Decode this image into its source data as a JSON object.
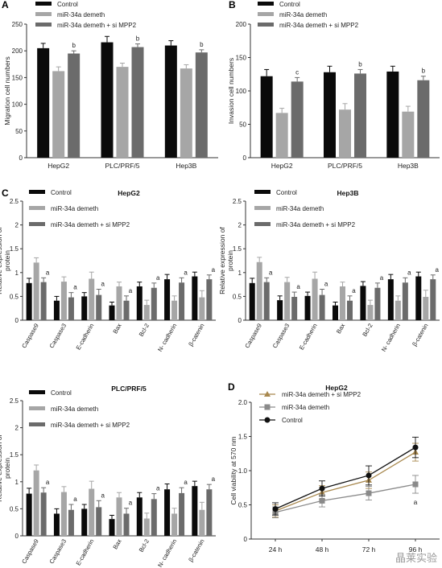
{
  "colors": {
    "control": "#0a0a0a",
    "demeth": "#a6a6a6",
    "demeth_si": "#6b6b6b",
    "line_si": "#a8884e",
    "line_demeth": "#8a8a8a",
    "line_control": "#111111"
  },
  "watermark": "晶莱实验",
  "chart_data": [
    {
      "panel": "A",
      "type": "bar",
      "ylabel": "Migration cell numbers",
      "ylim": [
        0,
        250
      ],
      "yticks": [
        0,
        50,
        100,
        150,
        200,
        250
      ],
      "categories": [
        "HepG2",
        "PLC/PRF/5",
        "Hep3B"
      ],
      "series": [
        {
          "name": "Control",
          "color": "control",
          "values": [
            205,
            216,
            210
          ],
          "err": [
            9,
            11,
            9
          ]
        },
        {
          "name": "miR-34a demeth",
          "color": "demeth",
          "values": [
            162,
            170,
            167
          ],
          "err": [
            8,
            7,
            7
          ]
        },
        {
          "name": "miR-34a demeth + si MPP2",
          "color": "demeth_si",
          "values": [
            195,
            207,
            197
          ],
          "err": [
            5,
            6,
            5
          ]
        }
      ],
      "annotations": [
        {
          "category": 0,
          "series": 2,
          "text": "b"
        },
        {
          "category": 1,
          "series": 2,
          "text": "b"
        },
        {
          "category": 2,
          "series": 2,
          "text": "b"
        }
      ],
      "legend_position": "top-left"
    },
    {
      "panel": "B",
      "type": "bar",
      "ylabel": "Invasion cell numbers",
      "ylim": [
        0,
        200
      ],
      "yticks": [
        0,
        50,
        100,
        150,
        200
      ],
      "categories": [
        "HepG2",
        "PLC/PRF/5",
        "Hep3B"
      ],
      "series": [
        {
          "name": "Control",
          "color": "control",
          "values": [
            122,
            128,
            129
          ],
          "err": [
            10,
            9,
            8
          ]
        },
        {
          "name": "miR-34a demeth",
          "color": "demeth",
          "values": [
            67,
            72,
            69
          ],
          "err": [
            7,
            9,
            8
          ]
        },
        {
          "name": "miR-34a demeth + si MPP2",
          "color": "demeth_si",
          "values": [
            114,
            126,
            116
          ],
          "err": [
            6,
            6,
            6
          ]
        }
      ],
      "annotations": [
        {
          "category": 0,
          "series": 2,
          "text": "c"
        },
        {
          "category": 1,
          "series": 2,
          "text": "b"
        },
        {
          "category": 2,
          "series": 2,
          "text": "b"
        }
      ],
      "legend_position": "top-left"
    },
    {
      "panel": "C",
      "type": "bar",
      "title": "HepG2",
      "ylabel": "Relative expression of protein",
      "ylim": [
        0,
        2.5
      ],
      "yticks": [
        0,
        0.5,
        1,
        1.5,
        2,
        2.5
      ],
      "categories": [
        "Caspase9",
        "Caspase3",
        "E-cadherin",
        "Bax",
        "Bcl-2",
        "N- cadherin",
        "β-catenin"
      ],
      "series": [
        {
          "name": "Control",
          "color": "control",
          "values": [
            0.78,
            0.41,
            0.5,
            0.31,
            0.71,
            0.86,
            0.92
          ],
          "err": [
            0.1,
            0.09,
            0.08,
            0.07,
            0.09,
            0.1,
            0.09
          ]
        },
        {
          "name": "miR-34a demeth",
          "color": "demeth",
          "values": [
            1.21,
            0.81,
            0.87,
            0.71,
            0.32,
            0.41,
            0.48
          ],
          "err": [
            0.1,
            0.1,
            0.14,
            0.09,
            0.1,
            0.1,
            0.14
          ]
        },
        {
          "name": "miR-34a demeth + si MPP2",
          "color": "demeth_si",
          "values": [
            0.8,
            0.48,
            0.53,
            0.41,
            0.68,
            0.79,
            0.86
          ],
          "err": [
            0.09,
            0.1,
            0.12,
            0.1,
            0.1,
            0.1,
            0.09
          ]
        }
      ],
      "annotations": [
        {
          "category": 0,
          "series": 2,
          "text": "a"
        },
        {
          "category": 1,
          "series": 2,
          "text": "a"
        },
        {
          "category": 2,
          "series": 2,
          "text": "a"
        },
        {
          "category": 3,
          "series": 2,
          "text": "a"
        },
        {
          "category": 4,
          "series": 2,
          "text": "a"
        },
        {
          "category": 5,
          "series": 2,
          "text": "a"
        },
        {
          "category": 6,
          "series": 2,
          "text": "a"
        }
      ],
      "legend_position": "top-left"
    },
    {
      "panel": "",
      "type": "bar",
      "title": "Hep3B",
      "ylabel": "Relative expression of protein",
      "ylim": [
        0,
        2.5
      ],
      "yticks": [
        0,
        0.5,
        1,
        1.5,
        2,
        2.5
      ],
      "categories": [
        "Caspase9",
        "Caspase3",
        "E-cadherin",
        "Bax",
        "Bcl-2",
        "N- cadherin",
        "β-catenin"
      ],
      "series": [
        {
          "name": "Control",
          "color": "control",
          "values": [
            0.78,
            0.42,
            0.51,
            0.31,
            0.72,
            0.86,
            0.92
          ],
          "err": [
            0.1,
            0.09,
            0.08,
            0.07,
            0.09,
            0.1,
            0.09
          ]
        },
        {
          "name": "miR-34a demeth",
          "color": "demeth",
          "values": [
            1.22,
            0.8,
            0.87,
            0.71,
            0.32,
            0.41,
            0.49
          ],
          "err": [
            0.1,
            0.1,
            0.14,
            0.09,
            0.1,
            0.1,
            0.14
          ]
        },
        {
          "name": "miR-34a demeth + si MPP2",
          "color": "demeth_si",
          "values": [
            0.8,
            0.49,
            0.53,
            0.41,
            0.68,
            0.79,
            0.86
          ],
          "err": [
            0.09,
            0.1,
            0.12,
            0.1,
            0.1,
            0.1,
            0.09
          ]
        }
      ],
      "annotations": [
        {
          "category": 0,
          "series": 2,
          "text": "a"
        },
        {
          "category": 1,
          "series": 2,
          "text": "a"
        },
        {
          "category": 2,
          "series": 2,
          "text": "a"
        },
        {
          "category": 3,
          "series": 2,
          "text": "a"
        },
        {
          "category": 4,
          "series": 2,
          "text": "a"
        },
        {
          "category": 5,
          "series": 2,
          "text": "a"
        },
        {
          "category": 6,
          "series": 2,
          "text": "a"
        }
      ],
      "legend_position": "top-left"
    },
    {
      "panel": "",
      "type": "bar",
      "title": "PLC/PRF/5",
      "ylabel": "Relative expression of protein",
      "ylim": [
        0,
        2.5
      ],
      "yticks": [
        0,
        0.5,
        1,
        1.5,
        2,
        2.5
      ],
      "categories": [
        "Caspase9",
        "Caspase3",
        "E-cadherin",
        "Bax",
        "Bcl-2",
        "N- cadherin",
        "β-catenin"
      ],
      "series": [
        {
          "name": "Control",
          "color": "control",
          "values": [
            0.78,
            0.41,
            0.5,
            0.31,
            0.71,
            0.86,
            0.92
          ],
          "err": [
            0.1,
            0.09,
            0.08,
            0.07,
            0.09,
            0.1,
            0.09
          ]
        },
        {
          "name": "miR-34a demeth",
          "color": "demeth",
          "values": [
            1.21,
            0.81,
            0.87,
            0.71,
            0.32,
            0.41,
            0.48
          ],
          "err": [
            0.1,
            0.1,
            0.14,
            0.09,
            0.1,
            0.1,
            0.14
          ]
        },
        {
          "name": "miR-34a demeth + si MPP2",
          "color": "demeth_si",
          "values": [
            0.8,
            0.48,
            0.53,
            0.41,
            0.68,
            0.79,
            0.86
          ],
          "err": [
            0.09,
            0.1,
            0.12,
            0.1,
            0.1,
            0.1,
            0.09
          ]
        }
      ],
      "annotations": [
        {
          "category": 0,
          "series": 2,
          "text": "a"
        },
        {
          "category": 1,
          "series": 2,
          "text": "a"
        },
        {
          "category": 2,
          "series": 2,
          "text": "a"
        },
        {
          "category": 3,
          "series": 2,
          "text": "a"
        },
        {
          "category": 4,
          "series": 2,
          "text": "a"
        },
        {
          "category": 5,
          "series": 2,
          "text": "a"
        },
        {
          "category": 6,
          "series": 2,
          "text": "a"
        }
      ],
      "legend_position": "top-left"
    },
    {
      "panel": "D",
      "type": "line",
      "title": "HepG2",
      "ylabel": "Cell viability at 570 nm",
      "ylim": [
        0,
        2.0
      ],
      "yticks": [
        0,
        0.5,
        1.0,
        1.5,
        2.0
      ],
      "yticklabels": [
        "0",
        "0.5",
        "1.0",
        "1.5",
        "2.0"
      ],
      "categories": [
        "24 h",
        "48 h",
        "72 h",
        "96 h"
      ],
      "series": [
        {
          "name": "miR-34a demeth + si MPP2",
          "color": "line_si",
          "marker": "triangle",
          "values": [
            0.41,
            0.68,
            0.86,
            1.27
          ],
          "err": [
            0.09,
            0.1,
            0.12,
            0.13
          ]
        },
        {
          "name": "miR-34a demeth",
          "color": "line_demeth",
          "marker": "square",
          "values": [
            0.39,
            0.56,
            0.67,
            0.8
          ],
          "err": [
            0.08,
            0.09,
            0.1,
            0.13
          ]
        },
        {
          "name": "Control",
          "color": "line_control",
          "marker": "circle",
          "values": [
            0.44,
            0.74,
            0.93,
            1.34
          ],
          "err": [
            0.09,
            0.11,
            0.14,
            0.15
          ]
        }
      ],
      "annotations": [
        {
          "category": 3,
          "series": 1,
          "text": "a"
        }
      ],
      "legend_position": "top-left"
    }
  ]
}
